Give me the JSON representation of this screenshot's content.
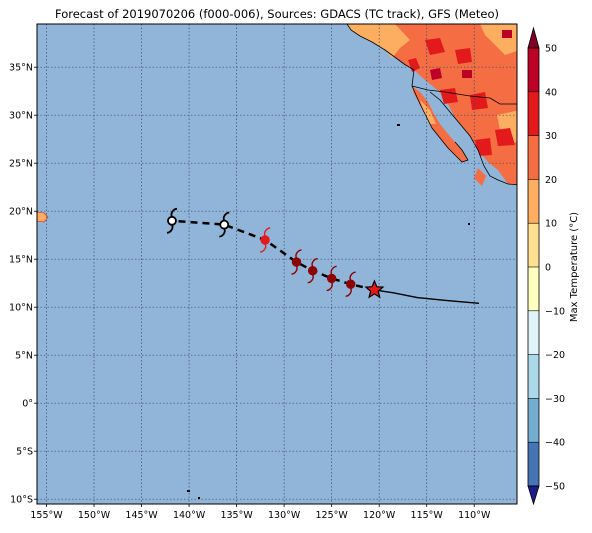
{
  "title": "Forecast of 2019070206 (f000-006), Sources: GDACS (TC track), GFS (Meteo)",
  "map": {
    "lon_ticks": [
      {
        "value": -155,
        "label": "155°W"
      },
      {
        "value": -150,
        "label": "150°W"
      },
      {
        "value": -145,
        "label": "145°W"
      },
      {
        "value": -140,
        "label": "140°W"
      },
      {
        "value": -135,
        "label": "135°W"
      },
      {
        "value": -130,
        "label": "130°W"
      },
      {
        "value": -125,
        "label": "125°W"
      },
      {
        "value": -120,
        "label": "120°W"
      },
      {
        "value": -115,
        "label": "115°W"
      },
      {
        "value": -110,
        "label": "110°W"
      }
    ],
    "lat_ticks": [
      {
        "value": 35,
        "label": "35°N"
      },
      {
        "value": 30,
        "label": "30°N"
      },
      {
        "value": 25,
        "label": "25°N"
      },
      {
        "value": 20,
        "label": "20°N"
      },
      {
        "value": 15,
        "label": "15°N"
      },
      {
        "value": 10,
        "label": "10°N"
      },
      {
        "value": 5,
        "label": "5°N"
      },
      {
        "value": 0,
        "label": "0°"
      },
      {
        "value": -5,
        "label": "5°S"
      },
      {
        "value": -10,
        "label": "10°S"
      }
    ],
    "extent": {
      "lon_min": -156,
      "lon_max": -105.5,
      "lat_min": -10.5,
      "lat_max": 39.5
    },
    "ocean_color": "#91b5d9",
    "grid": "dotted"
  },
  "track": {
    "observed": [
      [
        -109.5,
        10.4
      ],
      [
        -113,
        10.7
      ],
      [
        -116,
        11.0
      ],
      [
        -118.5,
        11.5
      ],
      [
        -120.5,
        11.8
      ]
    ],
    "forecast": [
      [
        -120.5,
        11.8
      ],
      [
        -123,
        12.4
      ],
      [
        -125,
        13.0
      ],
      [
        -127,
        13.8
      ],
      [
        -128.7,
        14.7
      ],
      [
        -132,
        17.0
      ],
      [
        -136.3,
        18.6
      ],
      [
        -141.8,
        19.0
      ]
    ],
    "current_position": [
      -120.5,
      11.8
    ],
    "storm_symbols": [
      {
        "lon": -123,
        "lat": 12.4,
        "color": "#8b0000"
      },
      {
        "lon": -125,
        "lat": 13.0,
        "color": "#8b0000"
      },
      {
        "lon": -127,
        "lat": 13.8,
        "color": "#8b0000"
      },
      {
        "lon": -128.7,
        "lat": 14.7,
        "color": "#8b0000"
      },
      {
        "lon": -132,
        "lat": 17.0,
        "color": "#e41a1c"
      },
      {
        "lon": -136.3,
        "lat": 18.6,
        "color": "#ffffff"
      },
      {
        "lon": -141.8,
        "lat": 19.0,
        "color": "#ffffff"
      }
    ]
  },
  "colorbar": {
    "label": "Max Temperature (°C)",
    "ticks": [
      50,
      40,
      30,
      20,
      10,
      0,
      -10,
      -20,
      -30,
      -40,
      -50
    ],
    "tick_labels": [
      "50",
      "40",
      "30",
      "20",
      "10",
      "0",
      "−10",
      "−20",
      "−30",
      "−40",
      "−50"
    ],
    "colors": [
      "#800026",
      "#bd0026",
      "#e31a1c",
      "#f46d43",
      "#fdae61",
      "#fee090",
      "#ffffbf",
      "#e0f3f8",
      "#abd9e9",
      "#74add1",
      "#4575b4",
      "#313695",
      "#1c1c8c"
    ]
  }
}
